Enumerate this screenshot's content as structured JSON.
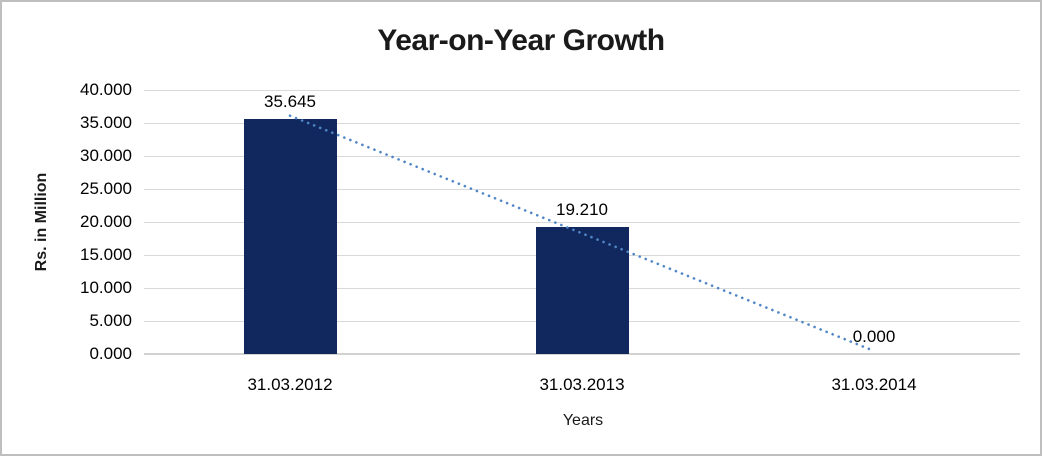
{
  "chart_data": {
    "type": "bar",
    "title": "Year-on-Year Growth",
    "xlabel": "Years",
    "ylabel": "Rs. in Million",
    "categories": [
      "31.03.2012",
      "31.03.2013",
      "31.03.2014"
    ],
    "values": [
      35.645,
      19.21,
      0.0
    ],
    "data_labels": [
      "35.645",
      "19.210",
      "0.000"
    ],
    "ylim": [
      0,
      40
    ],
    "ytick_step": 5,
    "ytick_labels": [
      "40.000",
      "35.000",
      "30.000",
      "25.000",
      "20.000",
      "15.000",
      "10.000",
      "5.000",
      "0.000"
    ],
    "grid": true,
    "legend": false,
    "bar_color": "#10285e",
    "gridline_color": "#d9d9d9",
    "axis_line_color": "#d2d2d2",
    "trendline": {
      "type": "linear",
      "style": "dotted",
      "color": "#5186c6"
    }
  }
}
